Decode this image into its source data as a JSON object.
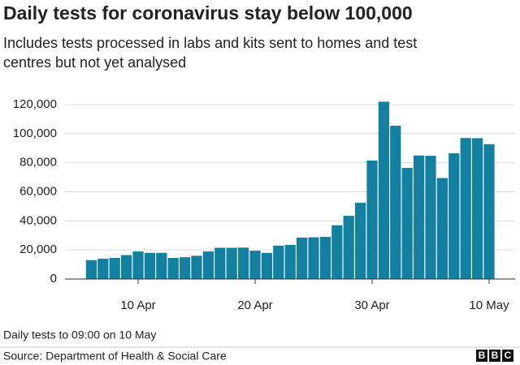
{
  "chart_data": {
    "type": "bar",
    "title": "Daily tests for coronavirus stay below 100,000",
    "subtitle": [
      "Includes tests processed in labs and kits sent to homes and test",
      "centres but not yet analysed"
    ],
    "categories": [
      null,
      null,
      null,
      null,
      "10 Apr",
      null,
      null,
      null,
      null,
      null,
      null,
      null,
      null,
      null,
      "20 Apr",
      null,
      null,
      null,
      null,
      null,
      null,
      null,
      null,
      null,
      "30 Apr",
      null,
      null,
      null,
      null,
      null,
      null,
      null,
      null,
      null,
      "10 May"
    ],
    "values": [
      13000,
      14000,
      14500,
      16500,
      19000,
      18000,
      18000,
      14500,
      15000,
      16000,
      19000,
      21500,
      21500,
      21600,
      19500,
      18000,
      23000,
      23500,
      28500,
      28700,
      29000,
      37000,
      43500,
      52500,
      81500,
      122000,
      105500,
      76500,
      85000,
      84800,
      69500,
      86500,
      97000,
      96900,
      92800
    ],
    "color": "#1380a1",
    "ylim": [
      0,
      120000
    ],
    "yticks": [
      0,
      {
        "value": 20000,
        "label": "20,000"
      },
      {
        "value": 40000,
        "label": "40,000"
      },
      {
        "value": 60000,
        "label": "60,000"
      },
      {
        "value": 80000,
        "label": "80,000"
      },
      {
        "value": 100000,
        "label": "100,000"
      },
      {
        "value": 120000,
        "label": "120,000"
      }
    ],
    "grid": true,
    "note": "Daily tests to 09:00 on 10 May",
    "source": "Source: Department of Health & Social Care",
    "logo": [
      "B",
      "B",
      "C"
    ]
  }
}
